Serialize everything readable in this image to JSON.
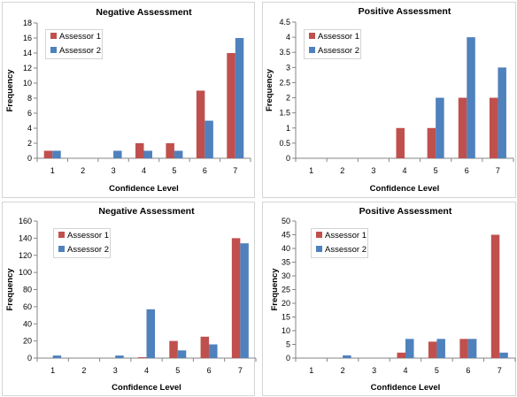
{
  "colors": {
    "assessor_1": "#c0504d",
    "assessor_2": "#4f81bd",
    "axis": "#868686",
    "frame": "#d4d4d4"
  },
  "chart_data": [
    {
      "type": "bar",
      "title": "Negative Assessment",
      "xlabel": "Confidence Level",
      "ylabel": "Frequency",
      "categories": [
        "1",
        "2",
        "3",
        "4",
        "5",
        "6",
        "7"
      ],
      "ylim": [
        0,
        18
      ],
      "yticks": [
        "0",
        "2",
        "4",
        "6",
        "8",
        "10",
        "12",
        "14",
        "16",
        "18"
      ],
      "grid": false,
      "legend": "top-left",
      "series": [
        {
          "name": "Assessor 1",
          "values": [
            1,
            0,
            0,
            2,
            2,
            9,
            14
          ]
        },
        {
          "name": "Assessor 2",
          "values": [
            1,
            0,
            1,
            1,
            1,
            5,
            16
          ]
        }
      ]
    },
    {
      "type": "bar",
      "title": "Positive Assessment",
      "xlabel": "Confidence Level",
      "ylabel": "Frequency",
      "categories": [
        "1",
        "2",
        "3",
        "4",
        "5",
        "6",
        "7"
      ],
      "ylim": [
        0,
        4.5
      ],
      "yticks": [
        "0",
        "0.5",
        "1",
        "1.5",
        "2",
        "2.5",
        "3",
        "3.5",
        "4",
        "4.5"
      ],
      "grid": false,
      "legend": "top-left",
      "series": [
        {
          "name": "Assessor 1",
          "values": [
            0,
            0,
            0,
            1,
            1,
            2,
            2
          ]
        },
        {
          "name": "Assessor 2",
          "values": [
            0,
            0,
            0,
            0,
            2,
            4,
            3
          ]
        }
      ]
    },
    {
      "type": "bar",
      "title": "Negative Assessment",
      "xlabel": "Confidence Level",
      "ylabel": "Frequency",
      "categories": [
        "1",
        "2",
        "3",
        "4",
        "5",
        "6",
        "7"
      ],
      "ylim": [
        0,
        160
      ],
      "yticks": [
        "0",
        "20",
        "40",
        "60",
        "80",
        "100",
        "120",
        "140",
        "160"
      ],
      "grid": false,
      "legend": "top-left",
      "series": [
        {
          "name": "Assessor 1",
          "values": [
            0,
            0,
            0,
            1,
            20,
            25,
            140
          ]
        },
        {
          "name": "Assessor 2",
          "values": [
            3,
            0,
            3,
            57,
            9,
            16,
            134
          ]
        }
      ]
    },
    {
      "type": "bar",
      "title": "Positive Assessment",
      "xlabel": "Confidence Level",
      "ylabel": "Frequency",
      "categories": [
        "1",
        "2",
        "3",
        "4",
        "5",
        "6",
        "7"
      ],
      "ylim": [
        0,
        50
      ],
      "yticks": [
        "0",
        "5",
        "10",
        "15",
        "20",
        "25",
        "30",
        "35",
        "40",
        "45",
        "50"
      ],
      "grid": false,
      "legend": "top-left",
      "series": [
        {
          "name": "Assessor 1",
          "values": [
            0,
            0,
            0,
            2,
            6,
            7,
            45
          ]
        },
        {
          "name": "Assessor 2",
          "values": [
            0,
            1,
            0,
            7,
            7,
            7,
            2
          ]
        }
      ]
    }
  ]
}
